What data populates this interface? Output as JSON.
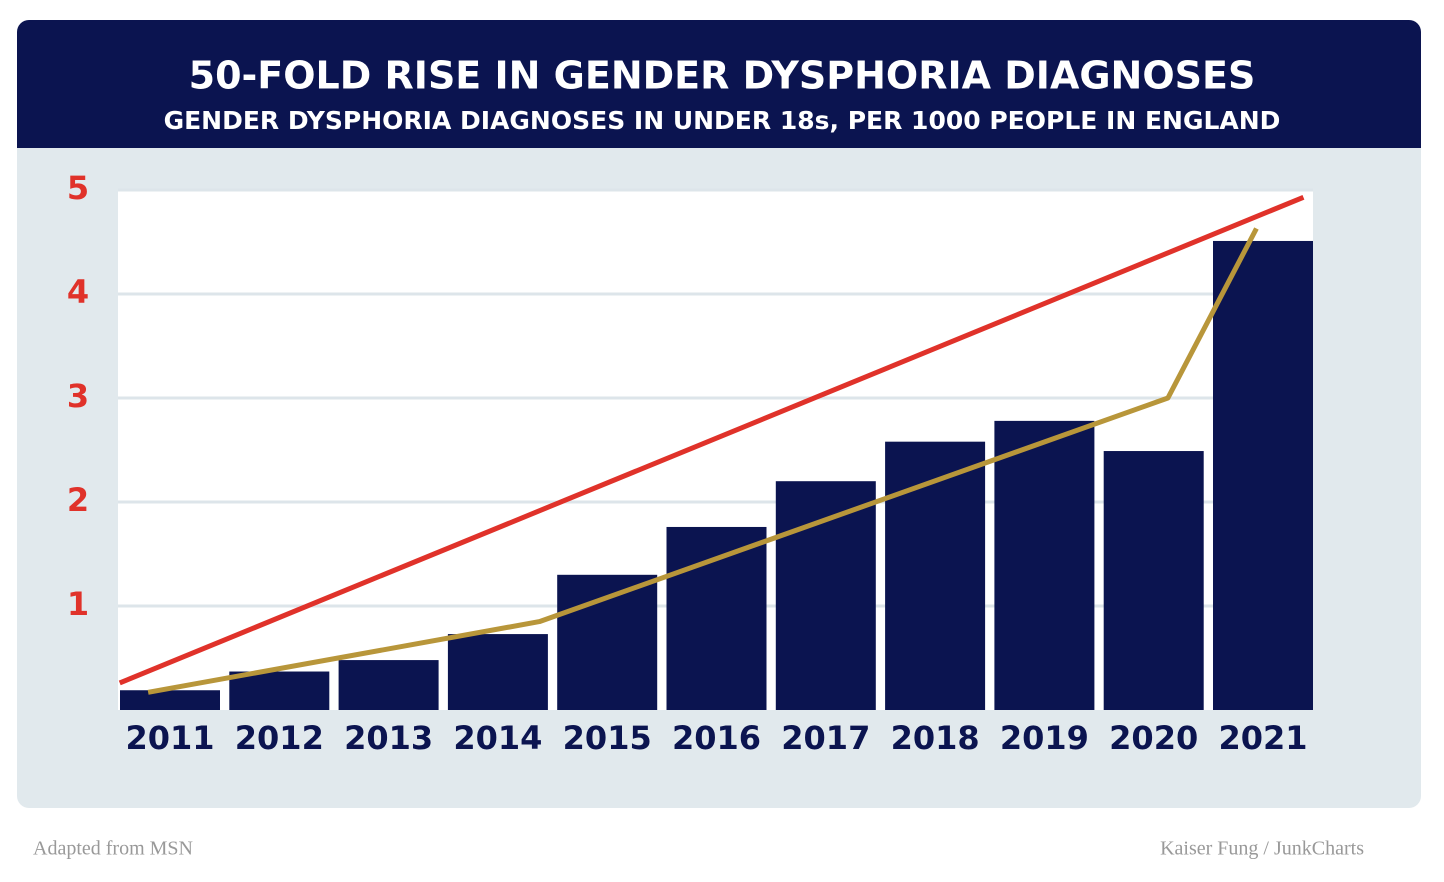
{
  "chart_data": {
    "type": "bar",
    "title": "50-FOLD RISE IN GENDER DYSPHORIA DIAGNOSES",
    "subtitle": "GENDER DYSPHORIA DIAGNOSES IN UNDER 18s, PER 1000 PEOPLE IN ENGLAND",
    "categories": [
      "2011",
      "2012",
      "2013",
      "2014",
      "2015",
      "2016",
      "2017",
      "2018",
      "2019",
      "2020",
      "2021"
    ],
    "values": [
      0.19,
      0.37,
      0.48,
      0.73,
      1.3,
      1.76,
      2.2,
      2.58,
      2.78,
      2.49,
      4.51
    ],
    "color": "#0b1450",
    "ylim": [
      0,
      5
    ],
    "yticks": [
      1,
      2,
      3,
      4,
      5
    ],
    "ytick_color": "#e0322a",
    "grid": true,
    "lines": [
      {
        "color": "#e0322a",
        "x": [
          -0.46,
          10.37
        ],
        "values": [
          0.26,
          4.93
        ]
      },
      {
        "color": "#b8963a",
        "x": [
          -0.2,
          3.38,
          9.13,
          9.94
        ],
        "values": [
          0.17,
          0.85,
          3.0,
          4.63
        ]
      }
    ]
  },
  "footer": {
    "left": "Adapted from MSN",
    "right": "Kaiser Fung / JunkCharts"
  }
}
